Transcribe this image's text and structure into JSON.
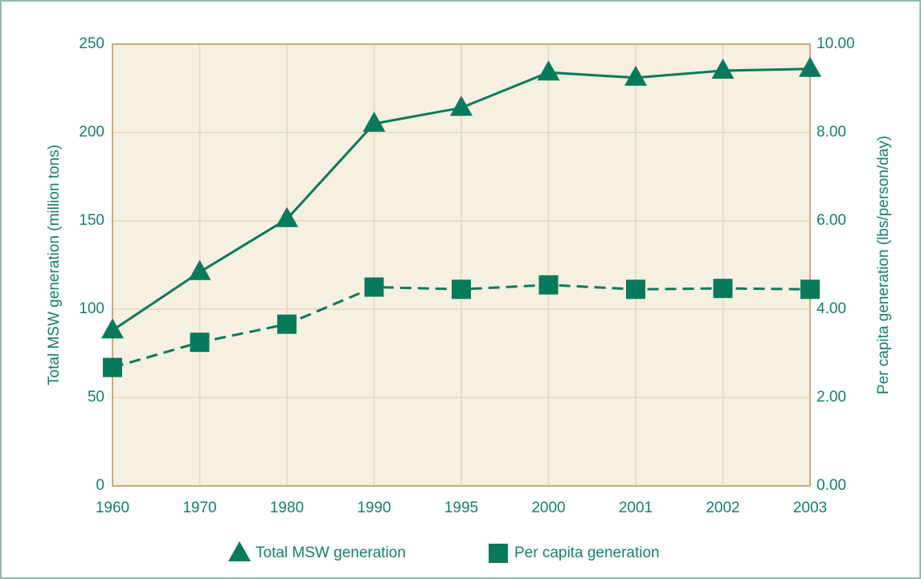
{
  "chart_data": {
    "type": "line",
    "categories": [
      "1960",
      "1970",
      "1980",
      "1990",
      "1995",
      "2000",
      "2001",
      "2002",
      "2003"
    ],
    "series": [
      {
        "name": "Total MSW generation",
        "color": "#087a5c",
        "marker": "triangle",
        "dash": false,
        "values": [
          88,
          121,
          151,
          205,
          214,
          234,
          231,
          235,
          236
        ]
      },
      {
        "name": "Per capita generation",
        "color": "#087a5c",
        "marker": "square",
        "dash": true,
        "axis": "y2",
        "values": [
          2.68,
          3.25,
          3.66,
          4.5,
          4.45,
          4.55,
          4.45,
          4.47,
          4.45
        ]
      }
    ],
    "ylabel": "Total MSW generation (million tons)",
    "y2label": "Per capita generation (lbs/person/day)",
    "ylim": [
      0,
      250
    ],
    "yticks": [
      0,
      50,
      100,
      150,
      200,
      250
    ],
    "y2lim": [
      0,
      10
    ],
    "y2ticks": [
      {
        "value": 0,
        "label": "0.00"
      },
      {
        "value": 2,
        "label": "2.00"
      },
      {
        "value": 4,
        "label": "4.00"
      },
      {
        "value": 6,
        "label": "6.00"
      },
      {
        "value": 8,
        "label": "8.00"
      },
      {
        "value": 10,
        "label": "10.00"
      }
    ],
    "grid": true,
    "legend": "bottom"
  }
}
